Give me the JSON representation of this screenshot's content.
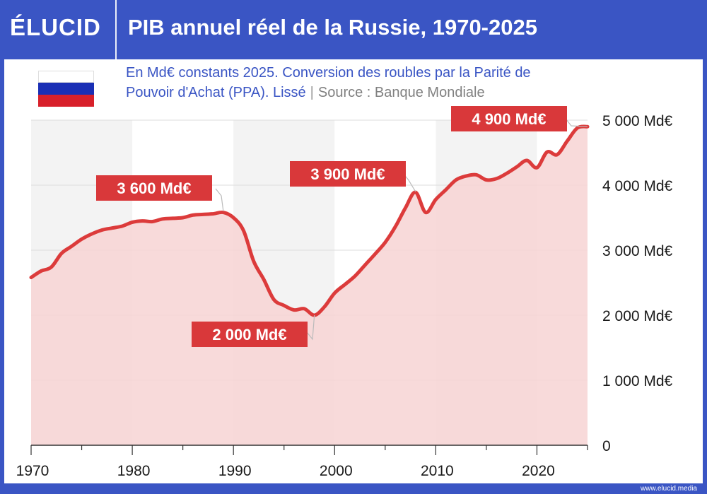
{
  "header": {
    "logo": "ÉLUCID",
    "title": "PIB annuel réel de la Russie, 1970-2025"
  },
  "subtitle": {
    "line1": "En Md€ constants 2025. Conversion des roubles par la Parité de",
    "line2": "Pouvoir d'Achat (PPA). Lissé",
    "separator": "|",
    "source": "Source : Banque Mondiale"
  },
  "footer": {
    "url": "www.elucid.media"
  },
  "flag": {
    "colors": [
      "#ffffff",
      "#1a2fb5",
      "#d8202a"
    ]
  },
  "chart_data": {
    "type": "area",
    "title": "PIB annuel réel de la Russie, 1970-2025",
    "xlabel": "",
    "ylabel": "",
    "xlim": [
      1970,
      2025
    ],
    "ylim": [
      0,
      5000
    ],
    "x_ticks": [
      1970,
      1980,
      1990,
      2000,
      2010,
      2020
    ],
    "y_ticks": [
      {
        "value": 0,
        "label": "0"
      },
      {
        "value": 1000,
        "label": "1 000 Md€"
      },
      {
        "value": 2000,
        "label": "2 000 Md€"
      },
      {
        "value": 3000,
        "label": "3 000 Md€"
      },
      {
        "value": 4000,
        "label": "4 000 Md€"
      },
      {
        "value": 5000,
        "label": "5 000 Md€"
      }
    ],
    "grid": true,
    "colors": {
      "line": "#dc3b3b",
      "fill": "#f7d3d3",
      "label_bg": "#d9383a"
    },
    "series": [
      {
        "x": [
          1970,
          1971,
          1972,
          1973,
          1974,
          1975,
          1976,
          1977,
          1978,
          1979,
          1980,
          1981,
          1982,
          1983,
          1984,
          1985,
          1986,
          1987,
          1988,
          1989,
          1990,
          1991,
          1992,
          1993,
          1994,
          1995,
          1996,
          1997,
          1998,
          1999,
          2000,
          2001,
          2002,
          2003,
          2004,
          2005,
          2006,
          2007,
          2008,
          2009,
          2010,
          2011,
          2012,
          2013,
          2014,
          2015,
          2016,
          2017,
          2018,
          2019,
          2020,
          2021,
          2022,
          2023,
          2024,
          2025
        ],
        "values": [
          2580,
          2680,
          2740,
          2950,
          3060,
          3170,
          3250,
          3310,
          3340,
          3370,
          3430,
          3450,
          3440,
          3480,
          3490,
          3500,
          3540,
          3550,
          3560,
          3580,
          3500,
          3300,
          2830,
          2550,
          2240,
          2150,
          2080,
          2100,
          2000,
          2130,
          2340,
          2470,
          2600,
          2770,
          2940,
          3120,
          3360,
          3650,
          3890,
          3580,
          3780,
          3930,
          4080,
          4140,
          4160,
          4080,
          4100,
          4180,
          4280,
          4380,
          4270,
          4510,
          4470,
          4680,
          4880,
          4900
        ]
      }
    ],
    "annotations": [
      {
        "x": 1989,
        "value": 3600,
        "label": "3 600 Md€"
      },
      {
        "x": 1998,
        "value": 2000,
        "label": "2 000 Md€"
      },
      {
        "x": 2008,
        "value": 3900,
        "label": "3 900 Md€"
      },
      {
        "x": 2025,
        "value": 4900,
        "label": "4 900 Md€"
      }
    ]
  }
}
